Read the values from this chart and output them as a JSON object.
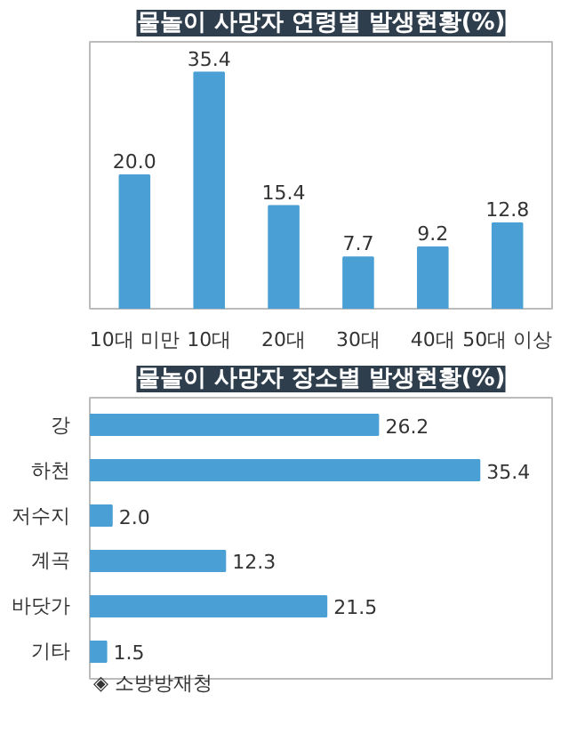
{
  "chart_data": [
    {
      "type": "bar",
      "title": "물놀이 사망자 연령별 발생현황(%)",
      "categories": [
        "10대 미만",
        "10대",
        "20대",
        "30대",
        "40대",
        "50대 이상"
      ],
      "values": [
        20.0,
        35.4,
        15.4,
        7.7,
        9.2,
        12.8
      ],
      "value_labels": [
        "20.0",
        "35.4",
        "15.4",
        "7.7",
        "9.2",
        "12.8"
      ],
      "color": "#4a9fd4",
      "ylim": [
        0,
        40
      ],
      "tick_labels": "x",
      "grid": false
    },
    {
      "type": "bar",
      "orientation": "horizontal",
      "title": "물놀이 사망자 장소별 발생현황(%)",
      "categories": [
        "강",
        "하천",
        "저수지",
        "계곡",
        "바닷가",
        "기타"
      ],
      "values": [
        26.2,
        35.4,
        2.0,
        12.3,
        21.5,
        1.5
      ],
      "value_labels": [
        "26.2",
        "35.4",
        "2.0",
        "12.3",
        "21.5",
        "1.5"
      ],
      "color": "#4a9fd4",
      "xlim": [
        0,
        42
      ],
      "tick_labels": "y",
      "grid": false,
      "annotations": [
        "◈ 소방방재청"
      ]
    }
  ]
}
